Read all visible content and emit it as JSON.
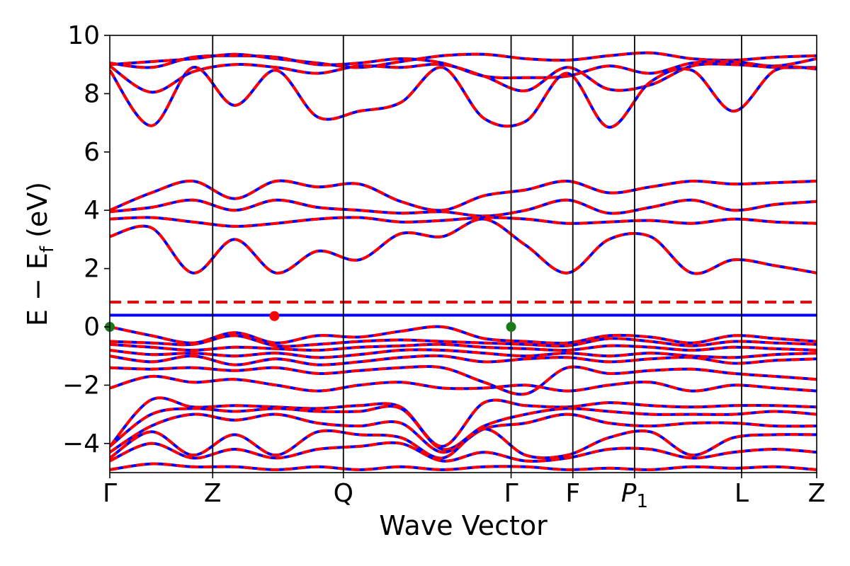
{
  "chart_data": {
    "type": "line",
    "title": "",
    "xlabel": "Wave Vector",
    "ylabel": "E − E_f (eV)",
    "ylabel_parts": {
      "main": "E − E",
      "sub": "f",
      "unit": " (eV)"
    },
    "ylim": [
      -5,
      10
    ],
    "yticks": [
      -4,
      -2,
      0,
      2,
      4,
      6,
      8,
      10
    ],
    "ytick_labels": [
      "−4",
      "−2",
      "0",
      "2",
      "4",
      "6",
      "8",
      "10"
    ],
    "kpath": {
      "positions": [
        0,
        1,
        2.27,
        3.9,
        4.5,
        5.1,
        6.14,
        6.87
      ],
      "labels": [
        "Γ",
        "Z",
        "Q",
        "Γ",
        "F",
        "P1",
        "L",
        "Z"
      ],
      "label_parts": [
        {
          "main": "Γ",
          "sub": ""
        },
        {
          "main": "Z",
          "sub": ""
        },
        {
          "main": "Q",
          "sub": ""
        },
        {
          "main": "Γ",
          "sub": ""
        },
        {
          "main": "F",
          "sub": ""
        },
        {
          "main": "P",
          "sub": "1"
        },
        {
          "main": "L",
          "sub": ""
        },
        {
          "main": "Z",
          "sub": ""
        }
      ]
    },
    "reference_lines": [
      {
        "energy": 0.4,
        "color": "#0000ff",
        "style": "solid"
      },
      {
        "energy": 0.85,
        "color": "#ff0000",
        "style": "dashed"
      }
    ],
    "markers": [
      {
        "k": 0,
        "energy": 0.0,
        "color": "#1a7a1a"
      },
      {
        "k": 3.9,
        "energy": 0.0,
        "color": "#1a7a1a"
      },
      {
        "k": 1.6,
        "energy": 0.37,
        "color": "#ff0000"
      }
    ],
    "series_style": {
      "solid_color": "#0000ff",
      "dashed_color": "#ff0000"
    },
    "series": [
      {
        "values": [
          9.0,
          9.1,
          9.2,
          9.35,
          9.2,
          9.05,
          8.9,
          9.1,
          9.3,
          9.35,
          9.2,
          9.15,
          9.3,
          9.4,
          9.2,
          9.15,
          9.25,
          9.3
        ]
      },
      {
        "values": [
          9.05,
          8.9,
          9.25,
          9.3,
          9.25,
          9.0,
          9.05,
          9.2,
          9.05,
          8.6,
          8.55,
          8.6,
          8.95,
          8.7,
          9.05,
          9.1,
          8.95,
          9.2
        ]
      },
      {
        "values": [
          8.95,
          8.05,
          8.75,
          9.0,
          8.9,
          8.7,
          8.95,
          8.9,
          9.0,
          8.6,
          8.1,
          8.9,
          8.15,
          8.3,
          8.95,
          9.0,
          8.9,
          8.9
        ]
      },
      {
        "values": [
          8.8,
          6.9,
          8.9,
          7.6,
          8.8,
          7.2,
          7.4,
          7.7,
          8.9,
          7.15,
          7.05,
          8.7,
          6.85,
          8.4,
          8.8,
          7.4,
          8.8,
          8.85
        ]
      },
      {
        "values": [
          4.0,
          4.6,
          5.0,
          4.4,
          5.0,
          4.8,
          4.9,
          4.3,
          4.0,
          4.5,
          4.7,
          5.0,
          4.6,
          4.8,
          5.0,
          4.9,
          4.95,
          5.0
        ]
      },
      {
        "values": [
          3.95,
          4.1,
          4.35,
          4.0,
          4.35,
          4.1,
          4.0,
          3.9,
          3.95,
          3.8,
          4.0,
          4.35,
          3.9,
          4.1,
          4.35,
          4.0,
          4.2,
          4.3
        ]
      },
      {
        "values": [
          3.7,
          3.75,
          3.6,
          3.45,
          3.55,
          3.7,
          3.75,
          3.6,
          3.65,
          3.75,
          3.7,
          3.55,
          3.6,
          3.65,
          3.55,
          3.7,
          3.6,
          3.55
        ]
      },
      {
        "values": [
          3.1,
          3.4,
          1.85,
          3.0,
          1.85,
          2.6,
          2.3,
          3.2,
          3.1,
          3.7,
          2.8,
          1.85,
          3.0,
          3.1,
          1.85,
          2.3,
          2.1,
          1.85
        ]
      },
      {
        "values": [
          0.0,
          -0.3,
          -0.55,
          -0.2,
          -0.55,
          -0.3,
          -0.35,
          -0.15,
          0.0,
          -0.4,
          -0.5,
          -0.55,
          -0.3,
          -0.35,
          -0.55,
          -0.3,
          -0.4,
          -0.5
        ]
      },
      {
        "values": [
          -0.5,
          -0.55,
          -0.6,
          -0.3,
          -0.65,
          -0.6,
          -0.5,
          -0.45,
          -0.5,
          -0.55,
          -0.6,
          -0.65,
          -0.4,
          -0.5,
          -0.65,
          -0.5,
          -0.55,
          -0.6
        ]
      },
      {
        "values": [
          -0.6,
          -0.7,
          -0.8,
          -0.7,
          -0.75,
          -0.8,
          -0.7,
          -0.65,
          -0.6,
          -0.7,
          -0.75,
          -0.8,
          -0.65,
          -0.7,
          -0.8,
          -0.7,
          -0.75,
          -0.8
        ]
      },
      {
        "values": [
          -0.8,
          -0.95,
          -0.9,
          -1.0,
          -0.9,
          -1.05,
          -0.95,
          -0.8,
          -0.8,
          -0.9,
          -1.0,
          -0.9,
          -1.0,
          -0.9,
          -1.0,
          -1.05,
          -0.95,
          -0.9
        ]
      },
      {
        "values": [
          -1.0,
          -1.2,
          -1.0,
          -1.3,
          -1.1,
          -1.3,
          -1.2,
          -1.05,
          -1.0,
          -1.2,
          -1.1,
          -1.05,
          -1.2,
          -1.1,
          -1.05,
          -1.25,
          -1.15,
          -1.1
        ]
      },
      {
        "values": [
          -1.4,
          -1.45,
          -1.4,
          -1.5,
          -1.4,
          -1.6,
          -1.5,
          -1.4,
          -1.4,
          -1.9,
          -2.3,
          -1.4,
          -1.6,
          -1.5,
          -1.45,
          -1.6,
          -1.7,
          -1.8
        ]
      },
      {
        "values": [
          -2.1,
          -1.7,
          -1.9,
          -1.8,
          -2.0,
          -2.2,
          -2.0,
          -1.9,
          -2.1,
          -2.1,
          -2.0,
          -2.2,
          -2.0,
          -1.9,
          -2.2,
          -2.0,
          -2.1,
          -2.2
        ]
      },
      {
        "values": [
          -4.1,
          -2.5,
          -2.75,
          -2.7,
          -2.75,
          -2.8,
          -2.7,
          -2.75,
          -4.1,
          -2.6,
          -2.7,
          -2.75,
          -2.6,
          -2.7,
          -2.75,
          -2.7,
          -2.7,
          -2.75
        ]
      },
      {
        "values": [
          -4.1,
          -3.0,
          -2.8,
          -2.9,
          -2.8,
          -2.9,
          -2.9,
          -2.8,
          -4.2,
          -3.4,
          -3.0,
          -2.8,
          -2.9,
          -3.0,
          -3.0,
          -3.0,
          -2.9,
          -3.0
        ]
      },
      {
        "values": [
          -4.3,
          -3.4,
          -3.0,
          -3.2,
          -3.0,
          -3.3,
          -3.4,
          -3.3,
          -4.3,
          -3.5,
          -3.3,
          -3.0,
          -3.3,
          -3.4,
          -3.3,
          -3.3,
          -3.4,
          -3.4
        ]
      },
      {
        "values": [
          -4.5,
          -3.6,
          -4.4,
          -3.7,
          -4.4,
          -3.6,
          -3.7,
          -3.8,
          -4.5,
          -3.5,
          -4.4,
          -4.4,
          -3.8,
          -3.6,
          -4.4,
          -3.8,
          -3.7,
          -3.7
        ]
      },
      {
        "values": [
          -4.6,
          -4.0,
          -4.5,
          -4.2,
          -4.5,
          -4.2,
          -4.1,
          -4.0,
          -4.6,
          -4.3,
          -4.6,
          -4.5,
          -4.2,
          -4.2,
          -4.5,
          -4.3,
          -4.2,
          -4.3
        ]
      },
      {
        "values": [
          -4.9,
          -4.7,
          -4.8,
          -4.8,
          -4.9,
          -4.8,
          -4.9,
          -4.8,
          -4.9,
          -4.8,
          -4.8,
          -4.9,
          -4.85,
          -4.9,
          -4.8,
          -4.85,
          -4.8,
          -4.9
        ]
      }
    ],
    "grid": false,
    "legend": "none"
  }
}
